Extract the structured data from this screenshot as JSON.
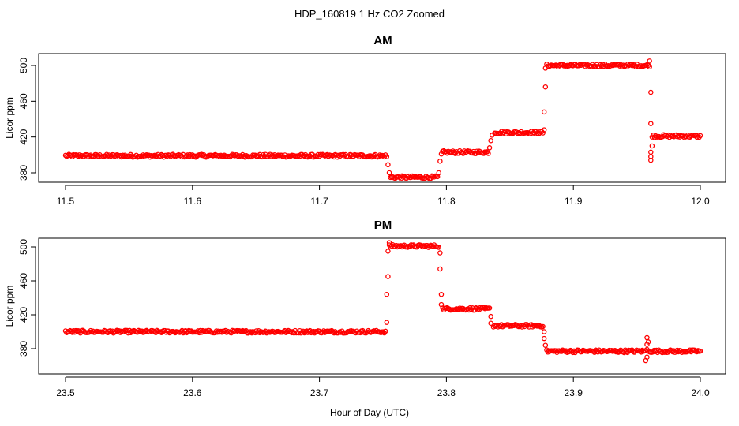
{
  "figure": {
    "title": "HDP_160819  1 Hz CO2 Zoomed",
    "xlabel": "Hour of Day (UTC)",
    "marker_color": "#ff0000"
  },
  "chart_data": [
    {
      "type": "scatter",
      "title": "AM",
      "ylabel": "Licor ppm",
      "xlim": [
        11.5,
        12.0
      ],
      "ylim": [
        372,
        508
      ],
      "x_ticks": [
        "11.5",
        "11.6",
        "11.7",
        "11.8",
        "11.9",
        "12.0"
      ],
      "y_ticks": [
        "380",
        "420",
        "460",
        "500"
      ],
      "segments": [
        {
          "x_start": 11.5,
          "x_end": 11.752,
          "y": 399
        },
        {
          "x_start": 11.756,
          "x_end": 11.793,
          "y": 375
        },
        {
          "x_start": 11.797,
          "x_end": 11.833,
          "y": 403
        },
        {
          "x_start": 11.838,
          "x_end": 11.876,
          "y": 425
        },
        {
          "x_start": 11.879,
          "x_end": 11.96,
          "y": 500
        },
        {
          "x_start": 11.963,
          "x_end": 12.0,
          "y": 421
        }
      ],
      "transition_points": [
        {
          "x": 11.753,
          "y": 398
        },
        {
          "x": 11.754,
          "y": 389
        },
        {
          "x": 11.755,
          "y": 380
        },
        {
          "x": 11.794,
          "y": 380
        },
        {
          "x": 11.795,
          "y": 393
        },
        {
          "x": 11.796,
          "y": 401
        },
        {
          "x": 11.834,
          "y": 408
        },
        {
          "x": 11.835,
          "y": 416
        },
        {
          "x": 11.836,
          "y": 422
        },
        {
          "x": 11.877,
          "y": 428
        },
        {
          "x": 11.877,
          "y": 448
        },
        {
          "x": 11.878,
          "y": 476
        },
        {
          "x": 11.878,
          "y": 497
        },
        {
          "x": 11.96,
          "y": 505
        },
        {
          "x": 11.961,
          "y": 470
        },
        {
          "x": 11.961,
          "y": 435
        },
        {
          "x": 11.962,
          "y": 420
        },
        {
          "x": 11.962,
          "y": 410
        },
        {
          "x": 11.961,
          "y": 403
        },
        {
          "x": 11.961,
          "y": 398
        },
        {
          "x": 11.961,
          "y": 394
        }
      ]
    },
    {
      "type": "scatter",
      "title": "PM",
      "ylabel": "Licor ppm",
      "xlim": [
        23.5,
        24.0
      ],
      "ylim": [
        363,
        508
      ],
      "x_ticks": [
        "23.5",
        "23.6",
        "23.7",
        "23.8",
        "23.9",
        "24.0"
      ],
      "y_ticks": [
        "380",
        "420",
        "460",
        "500"
      ],
      "segments": [
        {
          "x_start": 23.5,
          "x_end": 23.752,
          "y": 400
        },
        {
          "x_start": 23.755,
          "x_end": 23.794,
          "y": 501
        },
        {
          "x_start": 23.797,
          "x_end": 23.834,
          "y": 427
        },
        {
          "x_start": 23.837,
          "x_end": 23.876,
          "y": 407
        },
        {
          "x_start": 23.879,
          "x_end": 23.957,
          "y": 377
        },
        {
          "x_start": 23.96,
          "x_end": 24.0,
          "y": 377
        }
      ],
      "transition_points": [
        {
          "x": 23.753,
          "y": 411
        },
        {
          "x": 23.753,
          "y": 444
        },
        {
          "x": 23.754,
          "y": 465
        },
        {
          "x": 23.754,
          "y": 495
        },
        {
          "x": 23.755,
          "y": 505
        },
        {
          "x": 23.795,
          "y": 493
        },
        {
          "x": 23.795,
          "y": 474
        },
        {
          "x": 23.796,
          "y": 444
        },
        {
          "x": 23.796,
          "y": 432
        },
        {
          "x": 23.835,
          "y": 418
        },
        {
          "x": 23.835,
          "y": 410
        },
        {
          "x": 23.877,
          "y": 400
        },
        {
          "x": 23.877,
          "y": 392
        },
        {
          "x": 23.878,
          "y": 384
        },
        {
          "x": 23.958,
          "y": 393
        },
        {
          "x": 23.958,
          "y": 385
        },
        {
          "x": 23.958,
          "y": 379
        },
        {
          "x": 23.958,
          "y": 370
        },
        {
          "x": 23.957,
          "y": 366
        },
        {
          "x": 23.959,
          "y": 388
        }
      ]
    }
  ]
}
